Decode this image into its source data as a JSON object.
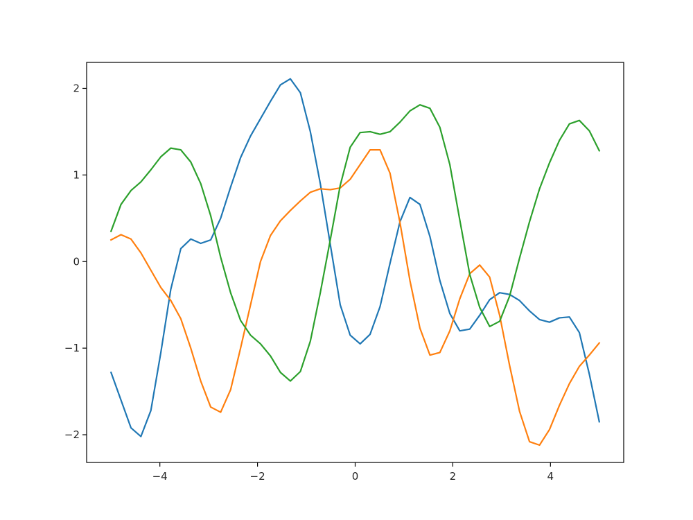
{
  "chart_data": {
    "type": "line",
    "title": "",
    "xlabel": "",
    "ylabel": "",
    "xlim": [
      -5.5,
      5.5
    ],
    "ylim": [
      -2.32,
      2.3
    ],
    "xticks": [
      -4,
      -2,
      0,
      2,
      4
    ],
    "yticks": [
      -2,
      -1,
      0,
      1,
      2
    ],
    "xtick_labels": [
      "−4",
      "−2",
      "0",
      "2",
      "4"
    ],
    "ytick_labels": [
      "−2",
      "−1",
      "0",
      "1",
      "2"
    ],
    "grid": false,
    "legend": "none",
    "x": [
      -5.0,
      -4.796,
      -4.592,
      -4.388,
      -4.184,
      -3.98,
      -3.776,
      -3.571,
      -3.367,
      -3.163,
      -2.959,
      -2.755,
      -2.551,
      -2.347,
      -2.143,
      -1.939,
      -1.735,
      -1.531,
      -1.327,
      -1.122,
      -0.918,
      -0.714,
      -0.51,
      -0.306,
      -0.102,
      0.102,
      0.306,
      0.51,
      0.714,
      0.918,
      1.122,
      1.327,
      1.531,
      1.735,
      1.939,
      2.143,
      2.347,
      2.551,
      2.755,
      2.959,
      3.163,
      3.367,
      3.571,
      3.776,
      3.98,
      4.184,
      4.388,
      4.592,
      4.796,
      5.0
    ],
    "series": [
      {
        "color": "#1f77b4",
        "values": [
          -1.28,
          -1.6,
          -1.92,
          -2.02,
          -1.72,
          -1.05,
          -0.32,
          0.15,
          0.26,
          0.21,
          0.25,
          0.5,
          0.86,
          1.2,
          1.45,
          1.65,
          1.85,
          2.04,
          2.11,
          1.95,
          1.5,
          0.9,
          0.2,
          -0.5,
          -0.85,
          -0.95,
          -0.84,
          -0.52,
          -0.02,
          0.46,
          0.74,
          0.66,
          0.29,
          -0.22,
          -0.6,
          -0.8,
          -0.78,
          -0.62,
          -0.44,
          -0.36,
          -0.38,
          -0.45,
          -0.57,
          -0.67,
          -0.7,
          -0.65,
          -0.64,
          -0.82,
          -1.3,
          -1.85
        ]
      },
      {
        "color": "#ff7f0e",
        "values": [
          0.25,
          0.31,
          0.26,
          0.1,
          -0.1,
          -0.3,
          -0.45,
          -0.66,
          -1.0,
          -1.38,
          -1.68,
          -1.74,
          -1.48,
          -1.0,
          -0.5,
          0.0,
          0.3,
          0.47,
          0.59,
          0.7,
          0.8,
          0.84,
          0.83,
          0.85,
          0.95,
          1.12,
          1.29,
          1.29,
          1.02,
          0.45,
          -0.22,
          -0.77,
          -1.08,
          -1.05,
          -0.8,
          -0.43,
          -0.14,
          -0.04,
          -0.18,
          -0.62,
          -1.2,
          -1.73,
          -2.08,
          -2.12,
          -1.94,
          -1.66,
          -1.41,
          -1.21,
          -1.08,
          -0.94
        ]
      },
      {
        "color": "#2ca02c",
        "values": [
          0.35,
          0.66,
          0.82,
          0.92,
          1.06,
          1.21,
          1.31,
          1.29,
          1.15,
          0.9,
          0.53,
          0.05,
          -0.36,
          -0.68,
          -0.85,
          -0.95,
          -1.09,
          -1.28,
          -1.38,
          -1.27,
          -0.92,
          -0.36,
          0.25,
          0.88,
          1.32,
          1.49,
          1.5,
          1.47,
          1.5,
          1.61,
          1.74,
          1.81,
          1.77,
          1.55,
          1.12,
          0.48,
          -0.15,
          -0.53,
          -0.75,
          -0.69,
          -0.4,
          0.04,
          0.46,
          0.84,
          1.14,
          1.4,
          1.59,
          1.63,
          1.51,
          1.28
        ]
      }
    ]
  }
}
